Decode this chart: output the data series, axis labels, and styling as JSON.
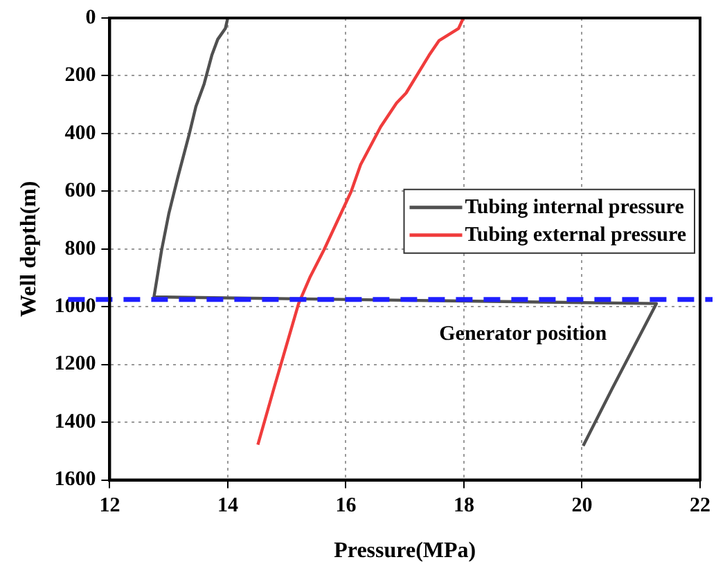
{
  "chart_data": {
    "type": "line",
    "xlabel": "Pressure(MPa)",
    "ylabel": "Well depth(m)",
    "xlim": [
      12,
      22
    ],
    "xticks": [
      12,
      14,
      16,
      18,
      20,
      22
    ],
    "ylim": [
      1600,
      0
    ],
    "yticks": [
      0,
      200,
      400,
      600,
      800,
      1000,
      1200,
      1400,
      1600
    ],
    "grid": true,
    "legend": "right",
    "marker": "none",
    "line_style": "solid",
    "series": [
      {
        "name": "Tubing internal pressure",
        "color": "#505050",
        "x": [
          14.0,
          13.96,
          13.83,
          13.73,
          13.6,
          13.46,
          13.35,
          13.15,
          13.0,
          12.88,
          12.8,
          12.75,
          21.26,
          20.51,
          20.02
        ],
        "values": [
          0,
          36,
          74,
          129,
          228,
          307,
          400,
          555,
          679,
          803,
          904,
          966,
          989,
          1284,
          1482
        ]
      },
      {
        "name": "Tubing external pressure",
        "color": "#f03c3c",
        "x": [
          17.99,
          17.91,
          17.58,
          17.41,
          17.02,
          16.86,
          16.59,
          16.25,
          16.09,
          15.63,
          15.39,
          15.2,
          14.78,
          14.51
        ],
        "values": [
          0,
          36,
          78,
          129,
          260,
          294,
          377,
          508,
          601,
          803,
          899,
          989,
          1284,
          1478
        ]
      }
    ],
    "ref_lines": [
      {
        "axis": "y",
        "value": 975,
        "color": "#1f1fff",
        "line_style": "dashed"
      }
    ],
    "annotations": [
      "Generator position"
    ]
  }
}
